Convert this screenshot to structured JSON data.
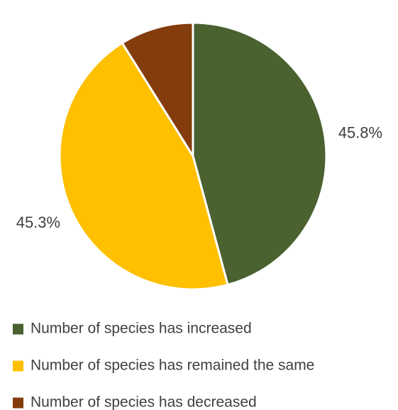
{
  "chart_data": {
    "type": "pie",
    "title": "",
    "slices": [
      {
        "label": "Number of species has increased",
        "value": 45.8,
        "display": "45.8%",
        "color": "#4a6130"
      },
      {
        "label": "Number of species has remained the same",
        "value": 45.3,
        "display": "45.3%",
        "color": "#ffc000"
      },
      {
        "label": "Number of species has decreased",
        "value": 8.9,
        "display": "8.9%",
        "color": "#843c0c"
      }
    ],
    "start_angle": "12 o'clock",
    "direction": "clockwise",
    "data_labels": "outside",
    "legend_placement": "bottom"
  }
}
